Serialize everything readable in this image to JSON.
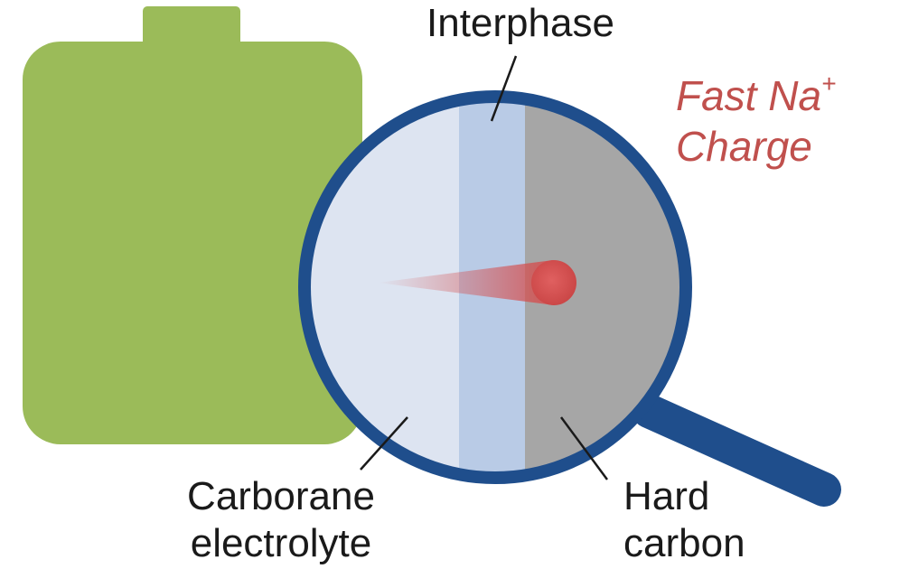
{
  "labels": {
    "interphase": "Interphase",
    "electrolyte_line1": "Carborane",
    "electrolyte_line2": "electrolyte",
    "hard_carbon_line1": "Hard",
    "hard_carbon_line2": "carbon",
    "fast_line1": "Fast Na",
    "fast_superscript": "+",
    "fast_line2": "Charge"
  },
  "colors": {
    "battery": "#9bbb59",
    "lens_ring": "#1f4e8c",
    "electrolyte_region": "#dde4f1",
    "interphase_region": "#b9cbe6",
    "hard_carbon_region": "#a6a6a6",
    "ion": "#d45050",
    "accent_text": "#c0504d"
  },
  "icons": [
    "battery-icon",
    "magnifier-icon",
    "sodium-ion-icon"
  ]
}
